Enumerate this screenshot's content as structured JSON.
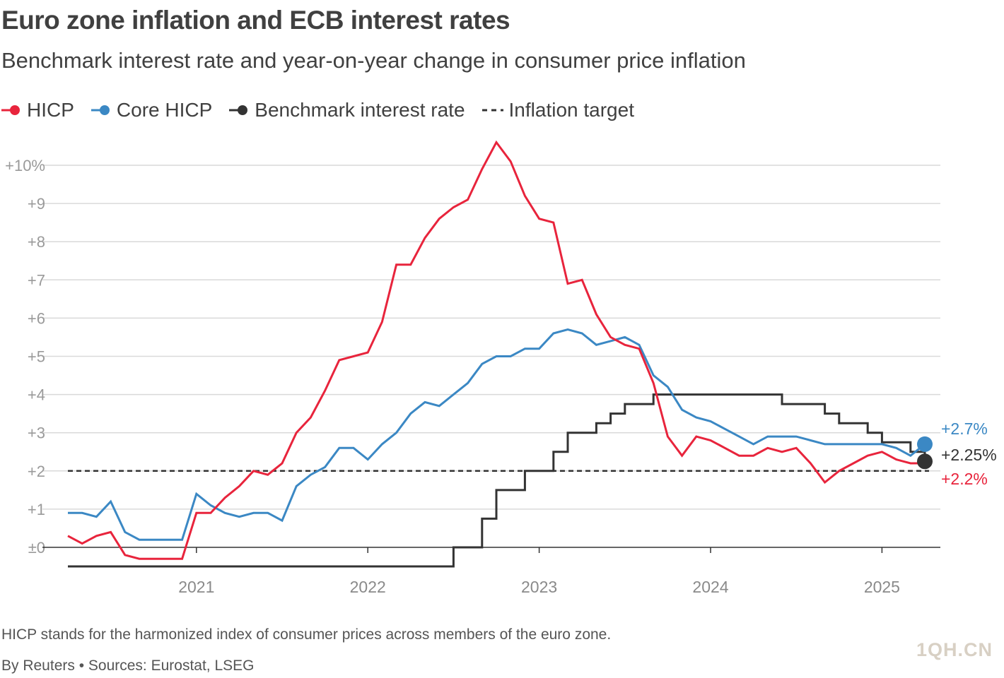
{
  "title": "Euro zone inflation and ECB interest rates",
  "subtitle": "Benchmark interest rate and year-on-year change in consumer price inflation",
  "legend": {
    "hicp": "HICP",
    "core": "Core HICP",
    "rate": "Benchmark interest rate",
    "target": "Inflation target"
  },
  "footnote": "HICP stands for the harmonized index of consumer prices across members of the euro zone.",
  "credit": "By Reuters • Sources: Eurostat, LSEG",
  "watermark": "1QH.CN",
  "colors": {
    "hicp": "#e8243c",
    "core": "#3b88c4",
    "rate": "#333333",
    "target": "#333333",
    "grid": "#d9d9d9"
  },
  "chart_data": {
    "type": "line",
    "title": "Euro zone inflation and ECB interest rates",
    "subtitle": "Benchmark interest rate and year-on-year change in consumer price inflation",
    "xlabel": "",
    "ylabel": "",
    "x_start": "2020-04",
    "x_end": "2025-04",
    "x_ticks": [
      "2021",
      "2022",
      "2023",
      "2024",
      "2025"
    ],
    "y_ticks": [
      {
        "v": 10,
        "label": "+10%"
      },
      {
        "v": 9,
        "label": "+9"
      },
      {
        "v": 8,
        "label": "+8"
      },
      {
        "v": 7,
        "label": "+7"
      },
      {
        "v": 6,
        "label": "+6"
      },
      {
        "v": 5,
        "label": "+5"
      },
      {
        "v": 4,
        "label": "+4"
      },
      {
        "v": 3,
        "label": "+3"
      },
      {
        "v": 2,
        "label": "+2"
      },
      {
        "v": 1,
        "label": "+1"
      },
      {
        "v": 0,
        "label": "±0"
      }
    ],
    "ylim": [
      -0.6,
      10.5
    ],
    "grid": true,
    "legend_position": "top-left",
    "target": 2,
    "series": [
      {
        "name": "HICP",
        "end_label": "+2.2%",
        "values": [
          0.3,
          0.1,
          0.3,
          0.4,
          -0.2,
          -0.3,
          -0.3,
          -0.3,
          -0.3,
          0.9,
          0.9,
          1.3,
          1.6,
          2.0,
          1.9,
          2.2,
          3.0,
          3.4,
          4.1,
          4.9,
          5.0,
          5.1,
          5.9,
          7.4,
          7.4,
          8.1,
          8.6,
          8.9,
          9.1,
          9.9,
          10.6,
          10.1,
          9.2,
          8.6,
          8.5,
          6.9,
          7.0,
          6.1,
          5.5,
          5.3,
          5.2,
          4.3,
          2.9,
          2.4,
          2.9,
          2.8,
          2.6,
          2.4,
          2.4,
          2.6,
          2.5,
          2.6,
          2.2,
          1.7,
          2.0,
          2.2,
          2.4,
          2.5,
          2.3,
          2.2,
          2.2
        ]
      },
      {
        "name": "Core HICP",
        "end_label": "+2.7%",
        "values": [
          0.9,
          0.9,
          0.8,
          1.2,
          0.4,
          0.2,
          0.2,
          0.2,
          0.2,
          1.4,
          1.1,
          0.9,
          0.8,
          0.9,
          0.9,
          0.7,
          1.6,
          1.9,
          2.1,
          2.6,
          2.6,
          2.3,
          2.7,
          3.0,
          3.5,
          3.8,
          3.7,
          4.0,
          4.3,
          4.8,
          5.0,
          5.0,
          5.2,
          5.2,
          5.6,
          5.7,
          5.6,
          5.3,
          5.4,
          5.5,
          5.3,
          4.5,
          4.2,
          3.6,
          3.4,
          3.3,
          3.1,
          2.9,
          2.7,
          2.9,
          2.9,
          2.9,
          2.8,
          2.7,
          2.7,
          2.7,
          2.7,
          2.7,
          2.6,
          2.4,
          2.7
        ]
      },
      {
        "name": "Benchmark interest rate",
        "end_label": "+2.25%",
        "step": true,
        "values": [
          -0.5,
          -0.5,
          -0.5,
          -0.5,
          -0.5,
          -0.5,
          -0.5,
          -0.5,
          -0.5,
          -0.5,
          -0.5,
          -0.5,
          -0.5,
          -0.5,
          -0.5,
          -0.5,
          -0.5,
          -0.5,
          -0.5,
          -0.5,
          -0.5,
          -0.5,
          -0.5,
          -0.5,
          -0.5,
          -0.5,
          -0.5,
          0.0,
          0.0,
          0.75,
          1.5,
          1.5,
          2.0,
          2.0,
          2.5,
          3.0,
          3.0,
          3.25,
          3.5,
          3.75,
          3.75,
          4.0,
          4.0,
          4.0,
          4.0,
          4.0,
          4.0,
          4.0,
          4.0,
          4.0,
          3.75,
          3.75,
          3.75,
          3.5,
          3.25,
          3.25,
          3.0,
          2.75,
          2.75,
          2.5,
          2.25
        ]
      }
    ]
  }
}
